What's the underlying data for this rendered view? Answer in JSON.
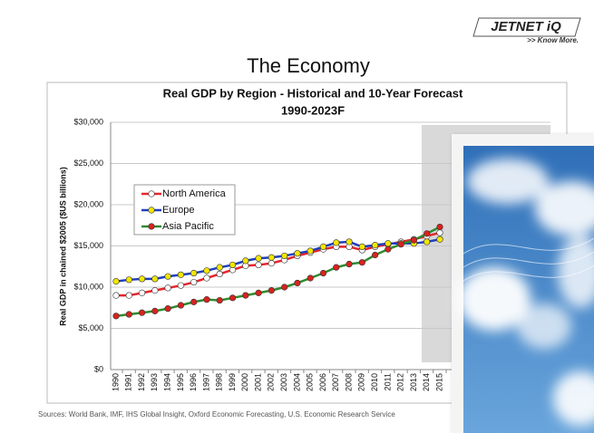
{
  "slide": {
    "title": "The Economy",
    "logo": "JETNET iQ",
    "tagline": ">> Know More.",
    "source": "Sources: World Bank, IMF, IHS Global Insight, Oxford Economic Forecasting, U.S. Economic Research Service"
  },
  "chart_data": {
    "type": "line",
    "title": "Real GDP by Region - Historical and 10-Year Forecast",
    "subtitle": "1990-2023F",
    "y_label": "Real GDP in chained $2005 ($US billions)",
    "categories": [
      "1990",
      "1991",
      "1992",
      "1993",
      "1994",
      "1995",
      "1996",
      "1997",
      "1998",
      "1999",
      "2000",
      "2001",
      "2002",
      "2003",
      "2004",
      "2005",
      "2006",
      "2007",
      "2008",
      "2009",
      "2010",
      "2011",
      "2012",
      "2013",
      "2014",
      "2015"
    ],
    "series": [
      {
        "name": "North America",
        "color": "#e8242a",
        "marker_color": "#ffffff",
        "values": [
          9000,
          9000,
          9300,
          9600,
          9900,
          10200,
          10600,
          11100,
          11600,
          12100,
          12600,
          12700,
          12900,
          13300,
          13800,
          14200,
          14600,
          14900,
          14900,
          14500,
          14900,
          15200,
          15500,
          15800,
          16200,
          16600
        ]
      },
      {
        "name": "Europe",
        "color": "#1f3fbf",
        "marker_color": "#f2e600",
        "values": [
          10700,
          10900,
          11000,
          11000,
          11300,
          11500,
          11700,
          12000,
          12400,
          12700,
          13200,
          13500,
          13600,
          13800,
          14100,
          14400,
          14900,
          15400,
          15500,
          14900,
          15100,
          15300,
          15300,
          15300,
          15500,
          15800
        ]
      },
      {
        "name": "Asia Pacific",
        "color": "#2e8b2e",
        "marker_color": "#d8231f",
        "values": [
          6500,
          6700,
          6900,
          7100,
          7400,
          7800,
          8200,
          8500,
          8400,
          8700,
          9000,
          9300,
          9600,
          10000,
          10500,
          11100,
          11700,
          12400,
          12800,
          13000,
          13900,
          14600,
          15200,
          15700,
          16500,
          17300
        ]
      }
    ],
    "ylim": [
      0,
      30000
    ],
    "yticks": [
      {
        "value": 0,
        "label": "$0"
      },
      {
        "value": 5000,
        "label": "$5,000"
      },
      {
        "value": 10000,
        "label": "$10,000"
      },
      {
        "value": 15000,
        "label": "$15,000"
      },
      {
        "value": 20000,
        "label": "$20,000"
      },
      {
        "value": 25000,
        "label": "$25,000"
      },
      {
        "value": 30000,
        "label": "$30,000"
      }
    ],
    "grid": true
  }
}
